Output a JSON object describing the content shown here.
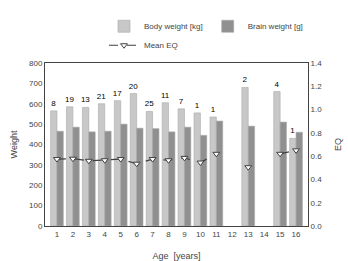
{
  "chart_data": {
    "type": "bar",
    "xlabel": "Age  [years]",
    "ylabel": "Weight",
    "y2label": "EQ",
    "x": [
      1,
      2,
      3,
      4,
      5,
      6,
      7,
      8,
      9,
      10,
      11,
      12,
      13,
      14,
      15,
      16
    ],
    "series": [
      {
        "name": "Body weight [kg]",
        "type": "bar",
        "color": "#c8c8c8",
        "values": [
          565,
          585,
          582,
          600,
          615,
          650,
          562,
          605,
          575,
          555,
          535,
          null,
          680,
          null,
          660,
          430
        ],
        "n": [
          8,
          19,
          13,
          21,
          17,
          20,
          25,
          11,
          7,
          1,
          1,
          null,
          2,
          null,
          4,
          1
        ]
      },
      {
        "name": "Brain weight [g]",
        "type": "bar",
        "color": "#909090",
        "values": [
          465,
          485,
          462,
          465,
          500,
          480,
          478,
          462,
          485,
          445,
          515,
          null,
          490,
          null,
          510,
          460
        ]
      },
      {
        "name": "Mean EQ",
        "type": "line",
        "axis": "y2",
        "color": "#404040",
        "line_style": "dashed",
        "marker": "triangle-down",
        "values": [
          0.575,
          0.578,
          0.56,
          0.565,
          0.575,
          0.535,
          0.575,
          0.565,
          0.585,
          0.545,
          0.62,
          null,
          0.505,
          null,
          0.62,
          0.65
        ]
      }
    ],
    "xlim": [
      0.25,
      16.75
    ],
    "xticks": [
      1,
      2,
      3,
      4,
      5,
      6,
      7,
      8,
      9,
      10,
      11,
      12,
      13,
      14,
      15,
      16
    ],
    "ylim": [
      0,
      800
    ],
    "yticks": [
      0,
      100,
      200,
      300,
      400,
      500,
      600,
      700,
      800
    ],
    "y2lim": [
      0.0,
      1.4
    ],
    "y2ticks": [
      {
        "value": 0.0,
        "label": "0.0"
      },
      0.2,
      0.4,
      0.6,
      0.8,
      {
        "value": 1.0,
        "label": "1.0"
      },
      1.2,
      1.4
    ],
    "grid": false,
    "legend": "upper right"
  }
}
